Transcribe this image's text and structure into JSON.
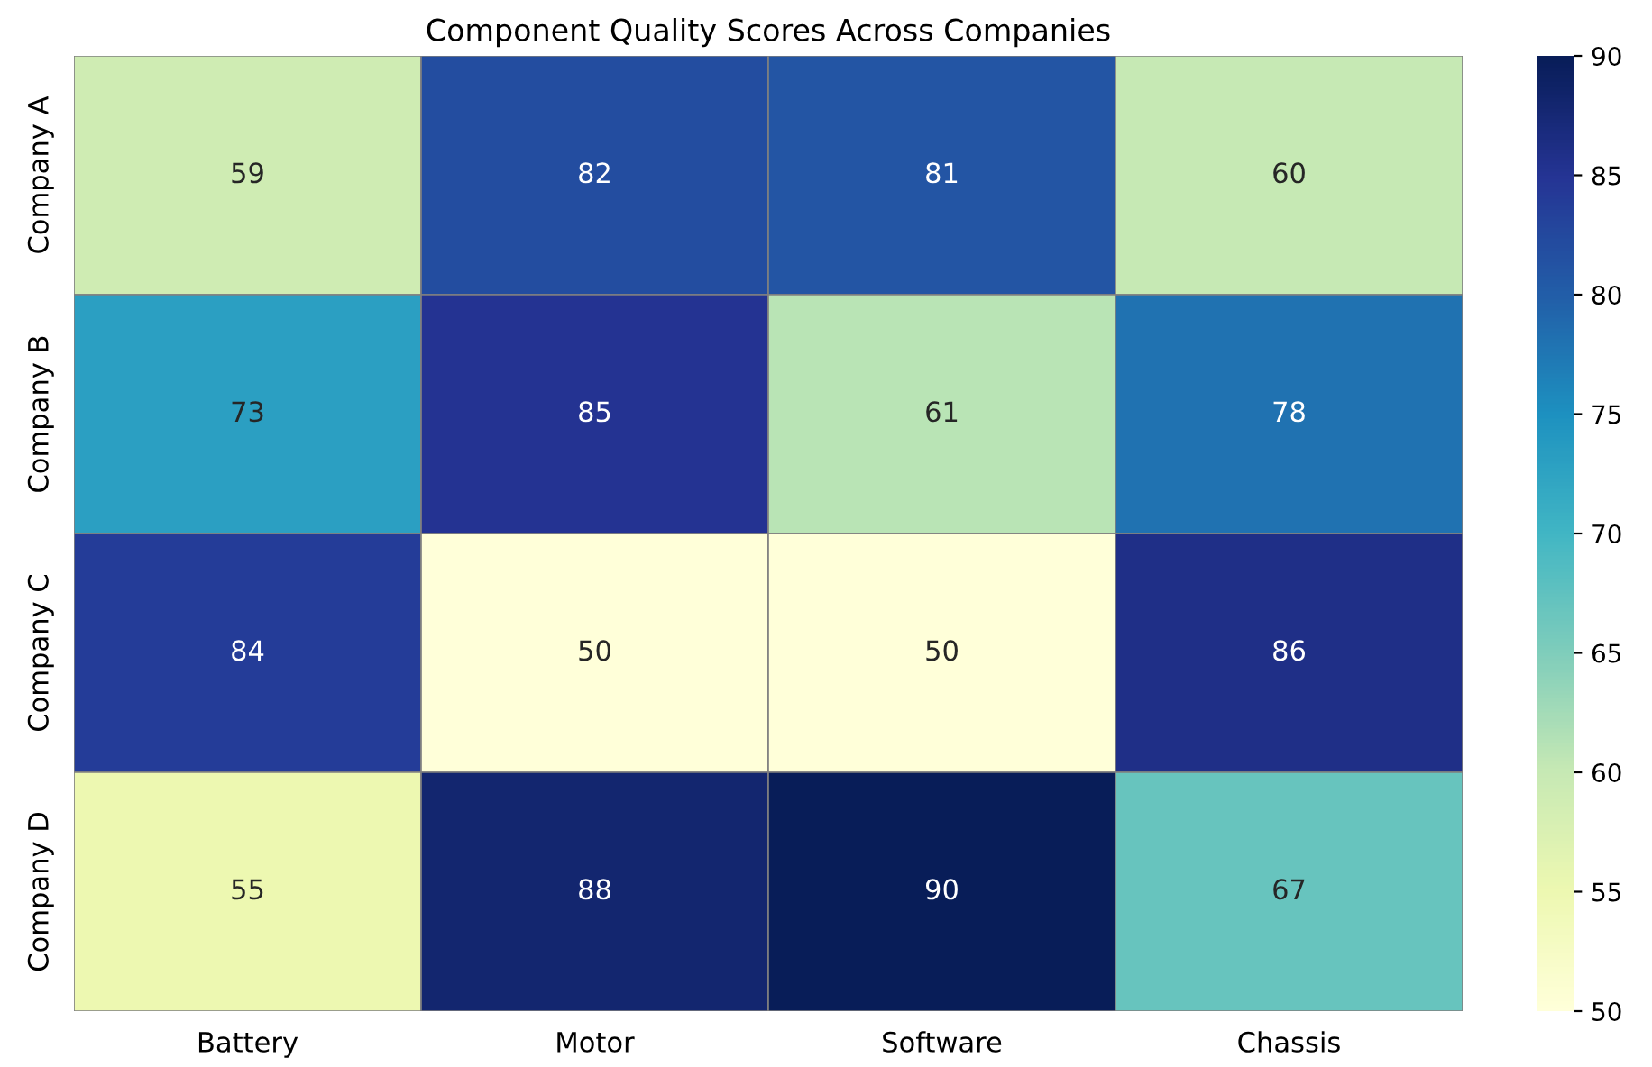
{
  "chart_data": {
    "type": "heatmap",
    "title": "Component Quality Scores Across Companies",
    "categories": [
      "Battery",
      "Motor",
      "Software",
      "Chassis"
    ],
    "y_categories": [
      "Company A",
      "Company B",
      "Company C",
      "Company D"
    ],
    "cells": [
      [
        59,
        82,
        81,
        60
      ],
      [
        73,
        85,
        61,
        78
      ],
      [
        84,
        50,
        50,
        86
      ],
      [
        55,
        88,
        90,
        67
      ]
    ],
    "data_labels": true,
    "clim": [
      50,
      90
    ],
    "cticks": [
      50,
      55,
      60,
      65,
      70,
      75,
      80,
      85,
      90
    ]
  }
}
